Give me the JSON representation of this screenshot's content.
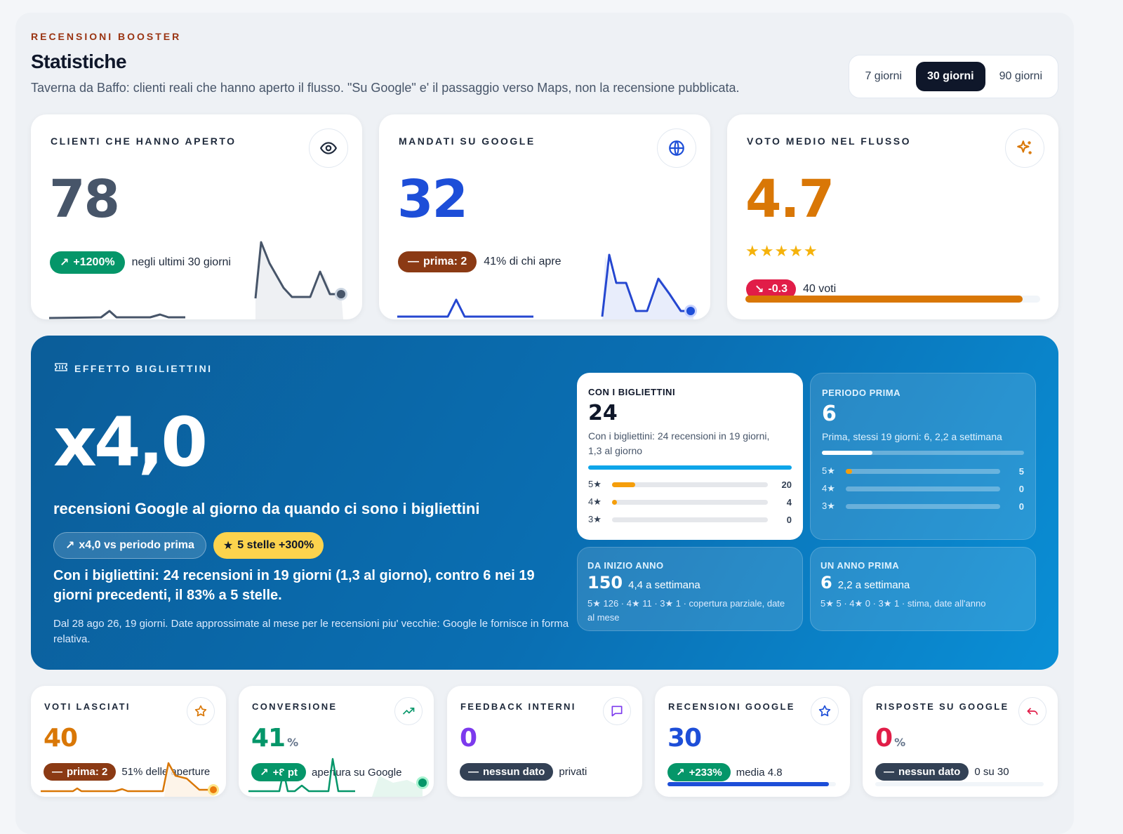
{
  "header": {
    "eyebrow": "RECENSIONI BOOSTER",
    "title": "Statistiche",
    "subtitle": "Taverna da Baffo: clienti reali che hanno aperto il flusso. \"Su Google\" e' il passaggio verso Maps, non la recensione pubblicata."
  },
  "range": {
    "options": [
      "7 giorni",
      "30 giorni",
      "90 giorni"
    ],
    "selected": "30 giorni"
  },
  "kpis": [
    {
      "label": "CLIENTI CHE HANNO APERTO",
      "icon": "eye-icon",
      "value": "78",
      "color": "#475569",
      "pill": "+1200%",
      "pill_color": "#059669",
      "pill_icon": "↗",
      "caption": "negli ultimi 30 giorni"
    },
    {
      "label": "MANDATI SU GOOGLE",
      "icon": "globe-icon",
      "value": "32",
      "color": "#1d4ed8",
      "pill": "prima: 2",
      "pill_color": "#8b3a14",
      "pill_icon": "—",
      "caption": "41% di chi apre"
    },
    {
      "label": "VOTO MEDIO NEL FLUSSO",
      "icon": "sparkles-icon",
      "value": "4.7",
      "color": "#d97706",
      "pill": "-0.3",
      "pill_color": "#e11d48",
      "pill_icon": "↘",
      "caption": "40 voti",
      "stars": "★★★★★",
      "rating_fraction": 0.94
    }
  ],
  "hero": {
    "label": "EFFETTO BIGLIETTINI",
    "multiplier": "x4,0",
    "description": "recensioni Google al giorno da quando ci sono i bigliettini",
    "pill_vs": "x4,0 vs periodo prima",
    "pill_stars": "5 stelle +300%",
    "summary": "Con i bigliettini: 24 recensioni in 19 giorni (1,3 al giorno), contro 6 nei 19 giorni precedenti, il 83% a 5 stelle.",
    "note": "Dal 28 ago 26, 19 giorni. Date approssimate al mese per le recensioni piu' vecchie: Google le fornisce in forma relativa.",
    "with_cards": {
      "label": "CON I BIGLIETTINI",
      "value": "24",
      "desc": "Con i bigliettini: 24 recensioni in 19 giorni, 1,3 al giorno",
      "stars": [
        {
          "label": "5★",
          "value": "20",
          "fraction": 0.15
        },
        {
          "label": "4★",
          "value": "4",
          "fraction": 0.03
        },
        {
          "label": "3★",
          "value": "0",
          "fraction": 0
        }
      ]
    },
    "before": {
      "label": "PERIODO PRIMA",
      "value": "6",
      "desc": "Prima, stessi 19 giorni: 6, 2,2 a settimana",
      "progress": 0.25,
      "stars": [
        {
          "label": "5★",
          "value": "5",
          "fraction": 0.04
        },
        {
          "label": "4★",
          "value": "0",
          "fraction": 0
        },
        {
          "label": "3★",
          "value": "0",
          "fraction": 0
        }
      ]
    },
    "ytd": {
      "label": "DA INIZIO ANNO",
      "value": "150",
      "rate": "4,4 a settimana",
      "detail": "5★ 126 · 4★ 11 · 3★ 1 · copertura parziale, date al mese"
    },
    "year_before": {
      "label": "UN ANNO PRIMA",
      "value": "6",
      "rate": "2,2 a settimana",
      "detail": "5★ 5 · 4★ 0 · 3★ 1 · stima, date all'anno"
    }
  },
  "minis": [
    {
      "label": "VOTI LASCIATI",
      "icon": "star-icon",
      "value": "40",
      "unit": "",
      "color": "#d97706",
      "pill": "prima: 2",
      "pill_color": "#8b3a14",
      "pill_icon": "—",
      "caption": "51% delle aperture"
    },
    {
      "label": "CONVERSIONE",
      "icon": "trending-up-icon",
      "value": "41",
      "unit": "%",
      "color": "#059669",
      "pill": "+8 pt",
      "pill_color": "#059669",
      "pill_icon": "↗",
      "caption": "apertura su Google"
    },
    {
      "label": "FEEDBACK INTERNI",
      "icon": "message-icon",
      "value": "0",
      "unit": "",
      "color": "#7c3aed",
      "pill": "nessun dato",
      "pill_color": "#334155",
      "pill_icon": "—",
      "caption": "privati"
    },
    {
      "label": "RECENSIONI GOOGLE",
      "icon": "star-icon",
      "value": "30",
      "unit": "",
      "color": "#1d4ed8",
      "pill": "+233%",
      "pill_color": "#059669",
      "pill_icon": "↗",
      "caption": "media 4.8",
      "progress": 0.85
    },
    {
      "label": "RISPOSTE SU GOOGLE",
      "icon": "reply-icon",
      "value": "0",
      "unit": "%",
      "color": "#e11d48",
      "pill": "nessun dato",
      "pill_color": "#334155",
      "pill_icon": "—",
      "caption": "0 su 30",
      "progress": 0
    }
  ]
}
